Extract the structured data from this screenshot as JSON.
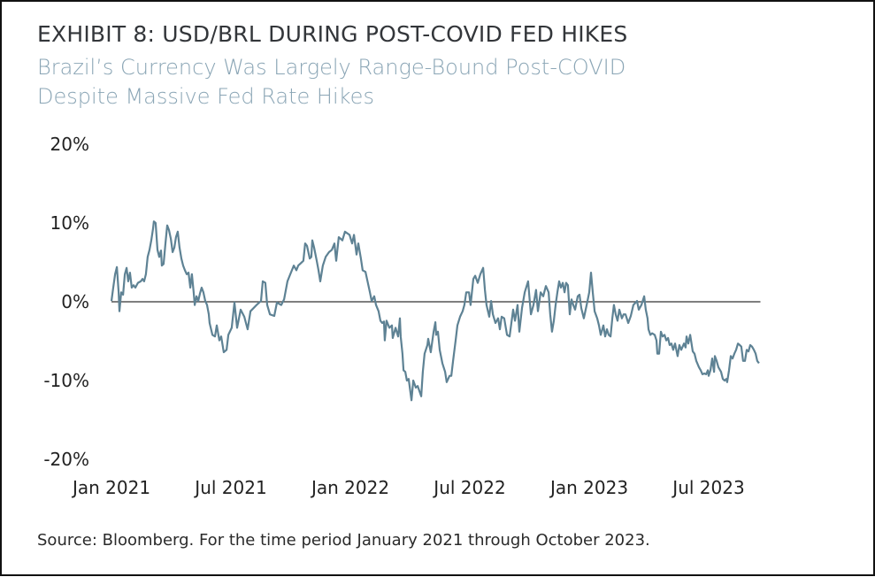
{
  "header": {
    "title": "EXHIBIT 8: USD/BRL DURING POST-COVID FED HIKES",
    "subtitle_line1": "Brazil’s Currency Was Largely Range-Bound Post-COVID",
    "subtitle_line2": "Despite Massive Fed Rate Hikes"
  },
  "footer": {
    "source": "Source: Bloomberg. For the time period January 2021 through October 2023."
  },
  "colors": {
    "line": "#5e8294",
    "zero_line": "#333333",
    "title": "#33363a",
    "subtitle": "#8aa5b5"
  },
  "chart_data": {
    "type": "line",
    "title": "EXHIBIT 8: USD/BRL DURING POST-COVID FED HIKES",
    "subtitle": "Brazil’s Currency Was Largely Range-Bound Post-COVID Despite Massive Fed Rate Hikes",
    "xlabel": "",
    "ylabel": "",
    "x_unit": "months since Jan 2021",
    "xlim": [
      0,
      32.6
    ],
    "ylim": [
      -20,
      20
    ],
    "yticks": [
      20,
      10,
      0,
      -10,
      -20
    ],
    "ytick_labels": [
      "20%",
      "10%",
      "0%",
      "-10%",
      "-20%"
    ],
    "xticks": [
      0,
      6,
      12,
      18,
      24,
      30
    ],
    "xtick_labels": [
      "Jan 2021",
      "Jul 2021",
      "Jan 2022",
      "Jul 2022",
      "Jan 2023",
      "Jul 2023"
    ],
    "grid": false,
    "reference_line": 0,
    "legend": "none",
    "series": [
      {
        "name": "USD/BRL % change",
        "x": [
          0.0,
          0.09,
          0.18,
          0.27,
          0.36,
          0.4,
          0.49,
          0.58,
          0.67,
          0.76,
          0.84,
          0.93,
          1.02,
          1.11,
          1.2,
          1.33,
          1.47,
          1.56,
          1.64,
          1.73,
          1.82,
          1.91,
          2.0,
          2.09,
          2.13,
          2.22,
          2.31,
          2.4,
          2.49,
          2.53,
          2.62,
          2.71,
          2.8,
          2.89,
          2.98,
          3.07,
          3.16,
          3.24,
          3.33,
          3.42,
          3.51,
          3.6,
          3.69,
          3.78,
          3.87,
          3.96,
          4.04,
          4.13,
          4.18,
          4.27,
          4.36,
          4.44,
          4.53,
          4.62,
          4.71,
          4.8,
          4.89,
          4.93,
          5.07,
          5.2,
          5.29,
          5.42,
          5.51,
          5.64,
          5.78,
          5.87,
          6.04,
          6.18,
          6.31,
          6.49,
          6.67,
          6.84,
          6.98,
          7.29,
          7.51,
          7.6,
          7.73,
          7.82,
          7.96,
          8.18,
          8.31,
          8.53,
          8.67,
          8.84,
          8.98,
          9.16,
          9.29,
          9.38,
          9.51,
          9.64,
          9.73,
          9.82,
          9.96,
          10.04,
          10.09,
          10.18,
          10.31,
          10.4,
          10.49,
          10.62,
          10.76,
          10.93,
          11.07,
          11.2,
          11.29,
          11.42,
          11.6,
          11.73,
          11.96,
          12.09,
          12.18,
          12.31,
          12.4,
          12.53,
          12.62,
          12.76,
          12.98,
          13.07,
          13.2,
          13.29,
          13.42,
          13.51,
          13.6,
          13.69,
          13.73,
          13.82,
          13.96,
          14.09,
          14.13,
          14.27,
          14.4,
          14.49,
          14.53,
          14.62,
          14.67,
          14.76,
          14.84,
          14.93,
          15.07,
          15.16,
          15.29,
          15.38,
          15.56,
          15.64,
          15.73,
          15.87,
          15.91,
          16.04,
          16.18,
          16.27,
          16.31,
          16.4,
          16.49,
          16.62,
          16.76,
          16.84,
          16.98,
          17.07,
          17.16,
          17.29,
          17.38,
          17.51,
          17.64,
          17.73,
          17.82,
          17.96,
          18.04,
          18.18,
          18.27,
          18.4,
          18.53,
          18.67,
          18.76,
          18.84,
          18.98,
          19.07,
          19.16,
          19.29,
          19.42,
          19.51,
          19.6,
          19.73,
          19.87,
          20.0,
          20.09,
          20.18,
          20.27,
          20.4,
          20.49,
          20.62,
          20.76,
          20.93,
          21.07,
          21.2,
          21.33,
          21.42,
          21.56,
          21.69,
          21.82,
          21.96,
          22.04,
          22.13,
          22.22,
          22.31,
          22.4,
          22.49,
          22.58,
          22.67,
          22.76,
          22.84,
          22.93,
          23.02,
          23.11,
          23.2,
          23.29,
          23.42,
          23.51,
          23.6,
          23.73,
          23.87,
          24.0,
          24.09,
          24.18,
          24.27,
          24.4,
          24.49,
          24.58,
          24.71,
          24.8,
          24.89,
          24.98,
          25.07,
          25.16,
          25.24,
          25.33,
          25.42,
          25.51,
          25.64,
          25.73,
          25.82,
          25.96,
          26.09,
          26.22,
          26.4,
          26.49,
          26.62,
          26.76,
          26.84,
          26.93,
          26.98,
          27.07,
          27.16,
          27.29,
          27.38,
          27.42,
          27.51,
          27.6,
          27.69,
          27.78,
          27.87,
          27.96,
          28.04,
          28.13,
          28.22,
          28.31,
          28.44,
          28.53,
          28.62,
          28.76,
          28.84,
          28.89,
          28.98,
          29.07,
          29.2,
          29.29,
          29.38,
          29.51,
          29.6,
          29.69,
          29.78,
          29.87,
          29.96,
          30.0,
          30.09,
          30.18,
          30.27,
          30.31,
          30.4,
          30.49,
          30.62,
          30.71,
          30.8,
          30.89,
          30.93,
          31.02,
          31.11,
          31.2,
          31.29,
          31.38,
          31.47,
          31.56,
          31.64,
          31.73,
          31.82,
          31.91,
          32.0,
          32.09,
          32.18,
          32.27,
          32.36,
          32.44,
          32.53
        ],
        "values": [
          0.1,
          1.8,
          3.5,
          4.4,
          1.2,
          -1.2,
          1.2,
          0.9,
          3.5,
          4.3,
          2.6,
          3.7,
          1.8,
          2.1,
          1.8,
          2.4,
          2.6,
          2.9,
          2.6,
          3.5,
          5.7,
          6.6,
          7.8,
          9.3,
          10.2,
          10.0,
          6.6,
          5.7,
          6.5,
          4.6,
          4.8,
          7.4,
          9.7,
          9.1,
          8.0,
          6.3,
          6.9,
          8.2,
          8.9,
          6.9,
          5.5,
          4.6,
          4.0,
          3.5,
          3.7,
          1.8,
          3.5,
          1.2,
          -0.4,
          0.7,
          0.1,
          1.0,
          1.8,
          1.2,
          0.1,
          -0.4,
          -1.6,
          -2.7,
          -4.2,
          -4.4,
          -3.0,
          -4.9,
          -4.4,
          -6.4,
          -6.1,
          -4.2,
          -3.3,
          -0.1,
          -3.3,
          -1.0,
          -1.9,
          -3.5,
          -1.2,
          -0.4,
          0.1,
          2.6,
          2.4,
          -0.4,
          -1.6,
          -1.8,
          -0.1,
          -0.4,
          0.3,
          2.6,
          3.5,
          4.6,
          4.0,
          4.6,
          4.9,
          5.2,
          7.4,
          7.1,
          5.5,
          5.7,
          7.8,
          6.9,
          5.2,
          4.0,
          2.6,
          4.6,
          5.7,
          6.3,
          6.6,
          7.4,
          5.2,
          8.2,
          7.8,
          8.9,
          8.5,
          7.4,
          8.5,
          6.0,
          7.4,
          5.5,
          4.0,
          3.8,
          1.2,
          0.1,
          0.7,
          -0.4,
          -1.2,
          -2.4,
          -2.7,
          -2.5,
          -4.9,
          -2.4,
          -3.3,
          -3.0,
          -4.6,
          -3.3,
          -4.4,
          -2.1,
          -4.4,
          -6.6,
          -8.7,
          -8.9,
          -10.0,
          -9.8,
          -12.5,
          -10.0,
          -10.9,
          -10.7,
          -12.0,
          -8.9,
          -6.6,
          -5.5,
          -4.7,
          -6.4,
          -3.8,
          -2.6,
          -4.2,
          -3.8,
          -6.1,
          -7.8,
          -8.9,
          -10.2,
          -9.4,
          -9.4,
          -7.5,
          -4.9,
          -3.0,
          -1.9,
          -1.2,
          -0.4,
          1.2,
          1.2,
          -0.4,
          2.9,
          3.3,
          2.4,
          3.5,
          4.3,
          1.5,
          -0.4,
          -1.9,
          0.1,
          -1.6,
          -2.7,
          -2.1,
          -3.5,
          -1.9,
          -2.1,
          -4.2,
          -4.4,
          -2.7,
          -1.0,
          -2.4,
          -0.4,
          -3.8,
          -0.8,
          1.2,
          2.6,
          -1.6,
          -0.4,
          1.5,
          -1.2,
          1.2,
          0.7,
          2.0,
          1.2,
          -1.6,
          -3.8,
          -2.4,
          -0.4,
          1.2,
          2.6,
          1.8,
          2.4,
          1.2,
          2.4,
          2.1,
          -1.6,
          0.3,
          -0.4,
          -1.0,
          0.7,
          0.9,
          -0.8,
          -2.1,
          -0.4,
          1.2,
          3.7,
          1.2,
          -1.2,
          -2.1,
          -3.0,
          -4.2,
          -3.0,
          -4.4,
          -3.5,
          -4.2,
          -4.4,
          -2.1,
          -0.4,
          -1.6,
          -2.4,
          -1.0,
          -2.1,
          -1.6,
          -1.6,
          -2.7,
          -1.8,
          -0.4,
          0.1,
          -1.0,
          -0.4,
          0.7,
          -1.0,
          -2.1,
          -3.5,
          -4.2,
          -4.0,
          -4.2,
          -4.9,
          -6.6,
          -6.6,
          -3.8,
          -4.4,
          -4.2,
          -4.9,
          -4.6,
          -5.5,
          -5.3,
          -6.1,
          -5.3,
          -6.9,
          -5.5,
          -6.1,
          -5.3,
          -5.8,
          -4.4,
          -5.3,
          -4.2,
          -6.3,
          -6.6,
          -7.5,
          -8.3,
          -8.7,
          -9.2,
          -9.1,
          -9.2,
          -8.7,
          -9.4,
          -8.7,
          -7.2,
          -8.9,
          -6.9,
          -7.5,
          -8.3,
          -8.9,
          -9.8,
          -10.0,
          -9.8,
          -10.2,
          -8.7,
          -6.9,
          -7.2,
          -6.6,
          -6.1,
          -5.3,
          -5.5,
          -5.7,
          -7.5,
          -7.5,
          -6.1,
          -6.3,
          -5.5,
          -5.7,
          -6.1,
          -6.6,
          -7.5,
          -7.8
        ]
      }
    ]
  }
}
